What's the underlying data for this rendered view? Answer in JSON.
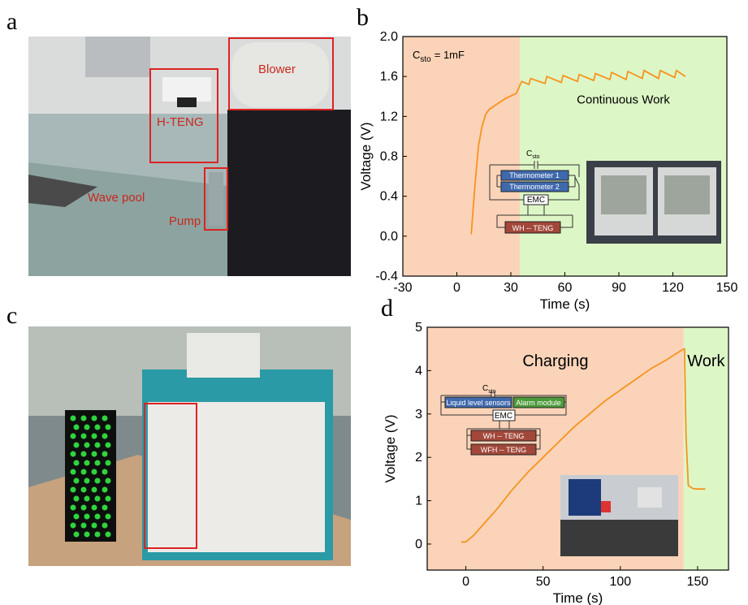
{
  "photo_a": {
    "label": "a",
    "annotations": {
      "blower": "Blower",
      "h_teng": "H-TENG",
      "wave_pool": "Wave pool",
      "pump": "Pump"
    }
  },
  "photo_c": {
    "label": "c"
  },
  "chart_data": [
    {
      "type": "line",
      "panel_label": "b",
      "x_label": "Time (s)",
      "y_label": "Voltage (V)",
      "xlim": [
        -30,
        150
      ],
      "ylim": [
        -0.4,
        2.0
      ],
      "xticks": [
        -30,
        0,
        30,
        60,
        90,
        120,
        150
      ],
      "yticks": [
        -0.4,
        {
          "value": 0,
          "label": "0.0"
        },
        0.4,
        0.8,
        1.2,
        1.6,
        {
          "value": 2,
          "label": "2.0"
        }
      ],
      "regions": [
        {
          "start": -30,
          "end": 35,
          "color": "#fbd3b8"
        },
        {
          "start": 35,
          "end": 150,
          "color": "#ddf6c6",
          "label": "Continuous Work"
        }
      ],
      "annotation": {
        "symbol": "C",
        "subscript": "sto",
        "text": "= 1mF"
      },
      "circuit": {
        "capacitor": {
          "symbol": "C",
          "subscript": "sto"
        },
        "loads": [
          "Thermometer 1",
          "Thermometer 2"
        ],
        "controller": "EMC",
        "sources": [
          "WH -- TENG"
        ]
      },
      "series": [
        {
          "color": "#f7931e",
          "x": [
            8,
            10,
            12,
            14,
            16,
            18,
            22,
            27,
            33,
            36,
            40,
            41,
            49,
            50,
            58,
            59,
            67,
            68,
            76,
            77,
            85,
            86,
            94,
            95,
            103,
            104,
            112,
            113,
            121,
            122,
            127
          ],
          "values": [
            0.02,
            0.5,
            0.9,
            1.1,
            1.22,
            1.27,
            1.32,
            1.38,
            1.43,
            1.55,
            1.52,
            1.58,
            1.53,
            1.6,
            1.54,
            1.61,
            1.55,
            1.62,
            1.56,
            1.63,
            1.57,
            1.64,
            1.57,
            1.65,
            1.58,
            1.66,
            1.58,
            1.66,
            1.59,
            1.66,
            1.6
          ]
        }
      ]
    },
    {
      "type": "line",
      "panel_label": "d",
      "x_label": "Time (s)",
      "y_label": "Voltage (V)",
      "xlim": [
        -25,
        170
      ],
      "ylim": [
        -0.6,
        5
      ],
      "xticks": [
        0,
        50,
        100,
        150
      ],
      "yticks": [
        0,
        1,
        2,
        3,
        4,
        5
      ],
      "regions": [
        {
          "start": -25,
          "end": 141,
          "color": "#fbd3b8",
          "label": "Charging"
        },
        {
          "start": 141,
          "end": 170,
          "color": "#ddf6c6",
          "label": "Work"
        }
      ],
      "circuit": {
        "capacitor": {
          "symbol": "C",
          "subscript": "sto"
        },
        "loads": [
          "Liquid level sensors",
          "Alarm module"
        ],
        "controller": "EMC",
        "sources": [
          "WH -- TENG",
          "WFH -- TENG"
        ]
      },
      "series": [
        {
          "color": "#f7931e",
          "x": [
            -3,
            0,
            5,
            10,
            20,
            30,
            40,
            50,
            60,
            70,
            80,
            90,
            100,
            110,
            120,
            130,
            140,
            141.5,
            142.5,
            144,
            147,
            150,
            155
          ],
          "values": [
            0.05,
            0.05,
            0.2,
            0.4,
            0.8,
            1.25,
            1.65,
            2.0,
            2.35,
            2.7,
            3.0,
            3.3,
            3.55,
            3.8,
            4.05,
            4.25,
            4.48,
            4.5,
            2.5,
            1.35,
            1.28,
            1.27,
            1.27
          ]
        }
      ]
    }
  ]
}
